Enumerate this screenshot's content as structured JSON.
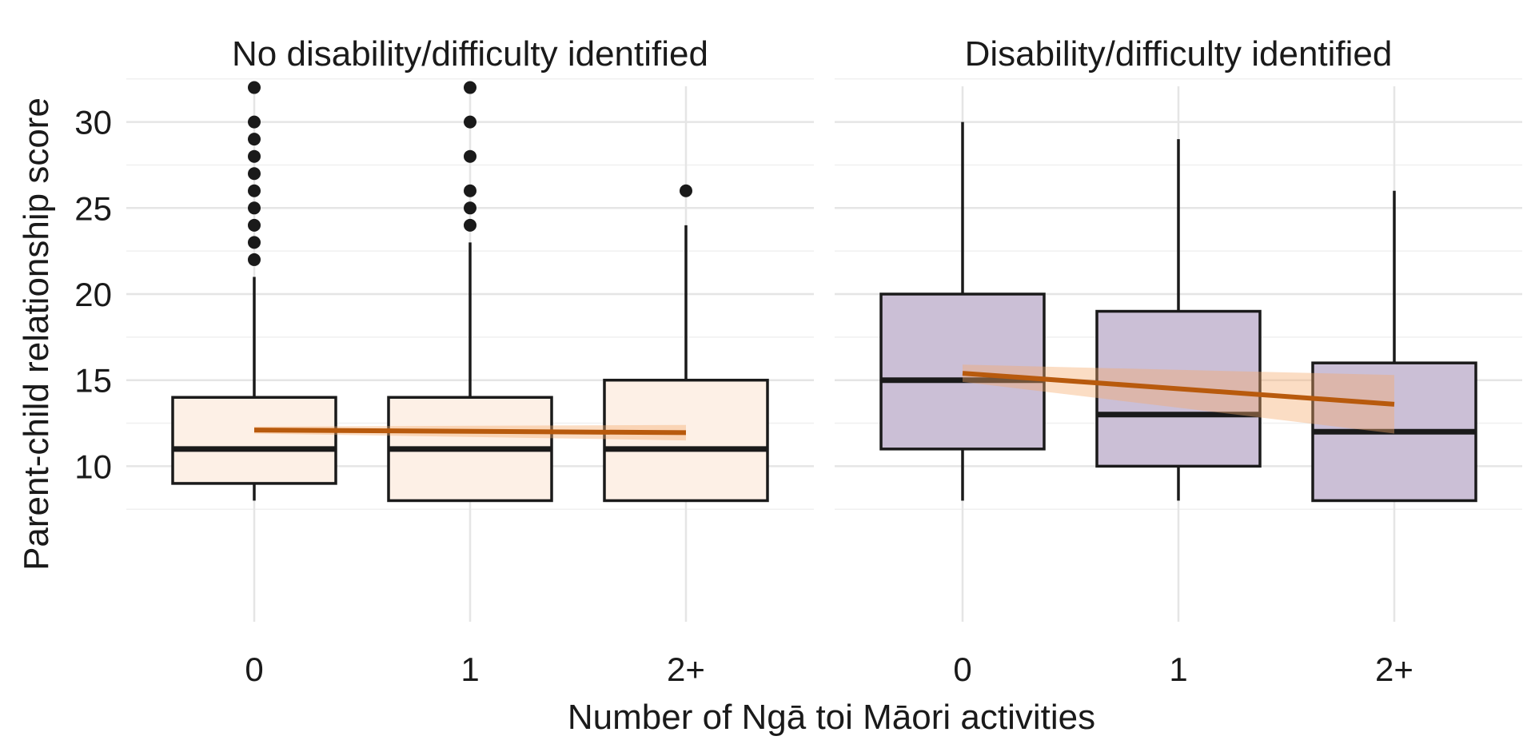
{
  "chart_data": {
    "type": "boxplot",
    "xlabel": "Number of Ngā toi Māori activities",
    "ylabel": "Parent-child relationship score",
    "ylim": [
      7,
      33
    ],
    "yticks": [
      10,
      15,
      20,
      25,
      30
    ],
    "categories": [
      "0",
      "1",
      "2+"
    ],
    "grid": true,
    "trend_color": "#B85A0D",
    "panels": [
      {
        "title": "No disability/difficulty identified",
        "box_fill": "#FDF0E6",
        "boxes": [
          {
            "category": "0",
            "min": 8,
            "q1": 9,
            "median": 11,
            "q3": 14,
            "max": 21,
            "outliers": [
              22,
              23,
              24,
              25,
              26,
              27,
              28,
              29,
              30,
              32
            ]
          },
          {
            "category": "1",
            "min": 8,
            "q1": 8,
            "median": 11,
            "q3": 14,
            "max": 23,
            "outliers": [
              24,
              25,
              26,
              28,
              30,
              32
            ]
          },
          {
            "category": "2+",
            "min": 8,
            "q1": 8,
            "median": 11,
            "q3": 15,
            "max": 24,
            "outliers": [
              26
            ]
          }
        ],
        "trend": {
          "x": [
            "0",
            "2+"
          ],
          "y": [
            12.1,
            11.95
          ],
          "ci_low": [
            11.9,
            11.5
          ],
          "ci_high": [
            12.3,
            12.4
          ]
        }
      },
      {
        "title": "Disability/difficulty identified",
        "box_fill": "#CBBFD6",
        "boxes": [
          {
            "category": "0",
            "min": 8,
            "q1": 11,
            "median": 15,
            "q3": 20,
            "max": 30,
            "outliers": []
          },
          {
            "category": "1",
            "min": 8,
            "q1": 10,
            "median": 13,
            "q3": 19,
            "max": 29,
            "outliers": []
          },
          {
            "category": "2+",
            "min": 8,
            "q1": 8,
            "median": 12,
            "q3": 16,
            "max": 26,
            "outliers": []
          }
        ],
        "trend": {
          "x": [
            "0",
            "2+"
          ],
          "y": [
            15.4,
            13.6
          ],
          "ci_low": [
            14.9,
            11.9
          ],
          "ci_high": [
            15.9,
            15.3
          ]
        }
      }
    ]
  }
}
